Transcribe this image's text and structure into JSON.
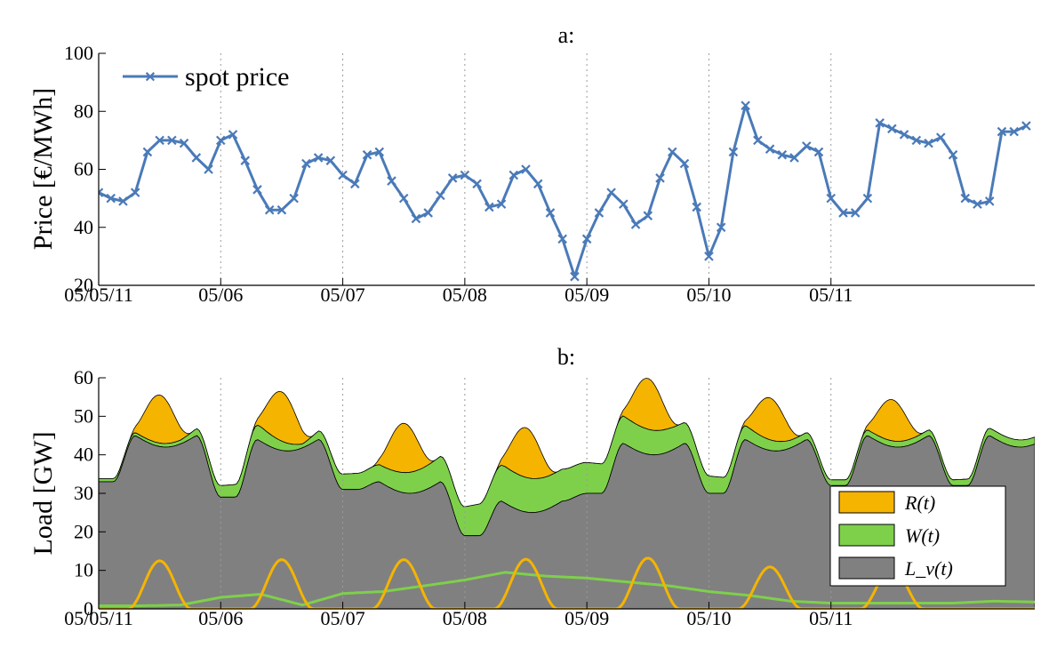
{
  "chart_data": [
    {
      "type": "line",
      "title": "a:",
      "xlabel": "",
      "ylabel": "Price [€/MWh]",
      "ylim": [
        20,
        100
      ],
      "yticks": [
        "20",
        "40",
        "60",
        "80",
        "100"
      ],
      "x_tick_labels": [
        "05/05/11",
        "05/06",
        "05/07",
        "05/08",
        "05/09",
        "05/10",
        "05/11"
      ],
      "x_range_days": [
        0,
        7.67
      ],
      "grid": "dotted vertical at day boundaries",
      "legend": "top-left",
      "colors": {
        "spot_price": "#4a7ab8"
      },
      "series": [
        {
          "name": "spot price",
          "x": [
            0,
            0.1,
            0.2,
            0.3,
            0.4,
            0.5,
            0.6,
            0.7,
            0.8,
            0.9,
            1.0,
            1.1,
            1.2,
            1.3,
            1.4,
            1.5,
            1.6,
            1.7,
            1.8,
            1.9,
            2.0,
            2.1,
            2.2,
            2.3,
            2.4,
            2.5,
            2.6,
            2.7,
            2.8,
            2.9,
            3.0,
            3.1,
            3.2,
            3.3,
            3.4,
            3.5,
            3.6,
            3.7,
            3.8,
            3.9,
            4.0,
            4.1,
            4.2,
            4.3,
            4.4,
            4.5,
            4.6,
            4.7,
            4.8,
            4.9,
            5.0,
            5.1,
            5.2,
            5.3,
            5.4,
            5.5,
            5.6,
            5.7,
            5.8,
            5.9,
            6.0,
            6.1,
            6.2,
            6.3,
            6.4,
            6.5,
            6.6,
            6.7,
            6.8,
            6.9,
            7.0,
            7.1,
            7.2,
            7.3,
            7.4,
            7.5,
            7.6
          ],
          "values": [
            52,
            50,
            49,
            52,
            66,
            70,
            70,
            69,
            64,
            60,
            70,
            72,
            63,
            53,
            46,
            46,
            50,
            62,
            64,
            63,
            58,
            55,
            65,
            66,
            56,
            50,
            43,
            45,
            51,
            57,
            58,
            55,
            47,
            48,
            58,
            60,
            55,
            45,
            36,
            23,
            36,
            45,
            52,
            48,
            41,
            44,
            57,
            66,
            62,
            47,
            30,
            40,
            66,
            82,
            70,
            67,
            65,
            64,
            68,
            66,
            50,
            45,
            45,
            50,
            76,
            74,
            72,
            70,
            69,
            71,
            65,
            50,
            48,
            49,
            73,
            73,
            75
          ]
        }
      ]
    },
    {
      "type": "area",
      "title": "b:",
      "xlabel": "",
      "ylabel": "Load [GW]",
      "ylim": [
        0,
        60
      ],
      "yticks": [
        "0",
        "10",
        "20",
        "30",
        "40",
        "50",
        "60"
      ],
      "x_tick_labels": [
        "05/05/11",
        "05/06",
        "05/07",
        "05/08",
        "05/09",
        "05/10",
        "05/11"
      ],
      "x_range_days": [
        0,
        7.67
      ],
      "grid": "dotted vertical at day boundaries",
      "legend": "bottom-right",
      "legend_labels": [
        "R(t)",
        "W(t)",
        "L_v(t)"
      ],
      "colors": {
        "R": "#f5b400",
        "W": "#7ed04b",
        "Lv": "#808080"
      },
      "series": [
        {
          "name": "R(t)",
          "peaks_GW": [
            12.5,
            12.8,
            12.8,
            12.9,
            13.2,
            10.9,
            10.7
          ],
          "peak_times_days": [
            0.5,
            1.5,
            2.5,
            3.5,
            4.5,
            5.5,
            6.5
          ]
        },
        {
          "name": "W(t)",
          "values_at_days": [
            0.8,
            0.8,
            1.0,
            3.0,
            3.8,
            1.0,
            4.0,
            4.5,
            6.0,
            7.5,
            9.5,
            8.5,
            8.0,
            7.0,
            6.0,
            4.5,
            3.5,
            2.0,
            1.5,
            1.5,
            1.5,
            1.5,
            2.0,
            1.8
          ],
          "days": [
            0,
            0.33,
            0.67,
            1.0,
            1.33,
            1.67,
            2.0,
            2.33,
            2.67,
            3.0,
            3.33,
            3.67,
            4.0,
            4.33,
            4.67,
            5.0,
            5.33,
            5.67,
            6.0,
            6.33,
            6.67,
            7.0,
            7.33,
            7.67
          ]
        },
        {
          "name": "L_v(t)",
          "day_peak_GW": [
            45,
            44,
            33,
            28,
            43,
            44,
            45
          ],
          "night_low_GW": [
            33,
            29,
            31,
            19,
            30,
            30,
            32
          ]
        }
      ]
    }
  ]
}
